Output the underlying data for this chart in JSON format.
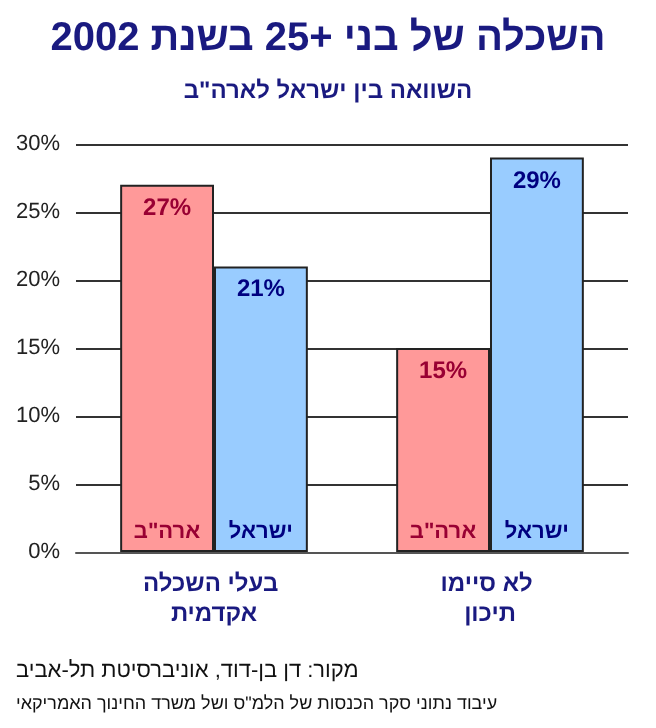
{
  "chart_data": {
    "type": "bar",
    "title": "השכלה של בני +25 בשנת 2002",
    "subtitle": "השוואה בין ישראל לארה\"ב",
    "categories": [
      "בעלי השכלה אקדמית",
      "לא סיימו תיכון"
    ],
    "series": [
      {
        "name": "ארה\"ב",
        "color": "#ff9999",
        "values": [
          27,
          15
        ],
        "value_labels": [
          "27%",
          "15%"
        ]
      },
      {
        "name": "ישראל",
        "color": "#99ccff",
        "values": [
          21,
          29
        ],
        "value_labels": [
          "21%",
          "29%"
        ]
      }
    ],
    "ylim": [
      0,
      30
    ],
    "yticks": [
      {
        "value": 0,
        "label": "0%"
      },
      {
        "value": 5,
        "label": "5%"
      },
      {
        "value": 10,
        "label": "10%"
      },
      {
        "value": 15,
        "label": "15%"
      },
      {
        "value": 20,
        "label": "20%"
      },
      {
        "value": 25,
        "label": "25%"
      },
      {
        "value": 30,
        "label": "30%"
      }
    ],
    "grid": "y",
    "legend": false,
    "annotations": [
      "מקור: דן בן-דוד, אוניברסיטת תל-אביב",
      "עיבוד נתוני סקר הכנסות של הלמ\"ס ושל משרד החינוך האמריקאי"
    ]
  }
}
